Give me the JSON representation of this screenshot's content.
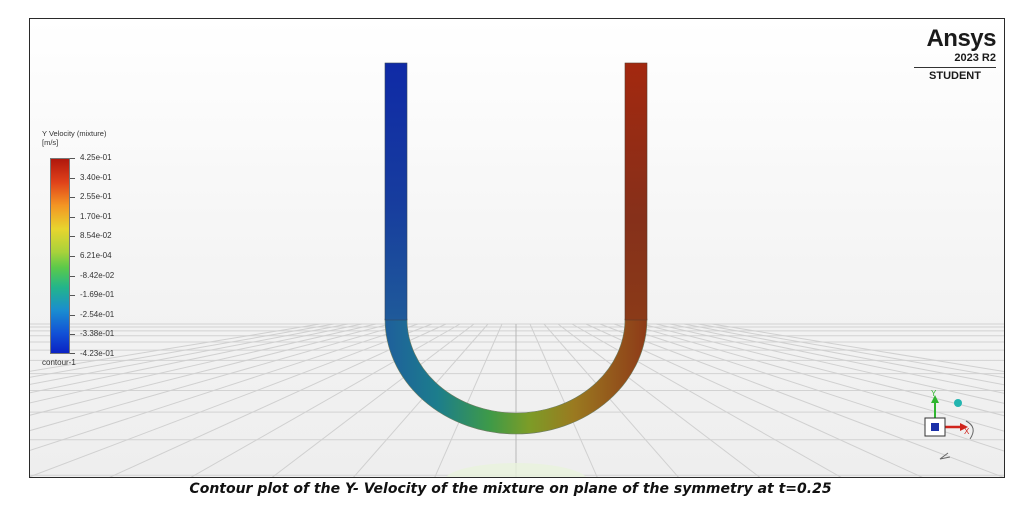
{
  "brand": {
    "name": "Ansys",
    "version": "2023 R2",
    "edition": "STUDENT"
  },
  "legend": {
    "title": "Y Velocity (mixture)",
    "units": "[m/s]",
    "max_color": "#b0170c",
    "min_color": "#0b22c4",
    "ticks": [
      "4.25e-01",
      "3.40e-01",
      "2.55e-01",
      "1.70e-01",
      "8.54e-02",
      "6.21e-04",
      "-8.42e-02",
      "-1.69e-01",
      "-2.54e-01",
      "-3.38e-01",
      "-4.23e-01"
    ],
    "object_name": "contour-1"
  },
  "triad": {
    "x_label": "X",
    "y_label": "Y",
    "x_color": "#d0241c",
    "y_color": "#2fb52f"
  },
  "caption": "Contour plot of the Y- Velocity of the mixture on plane of the symmetry at t=0.25"
}
